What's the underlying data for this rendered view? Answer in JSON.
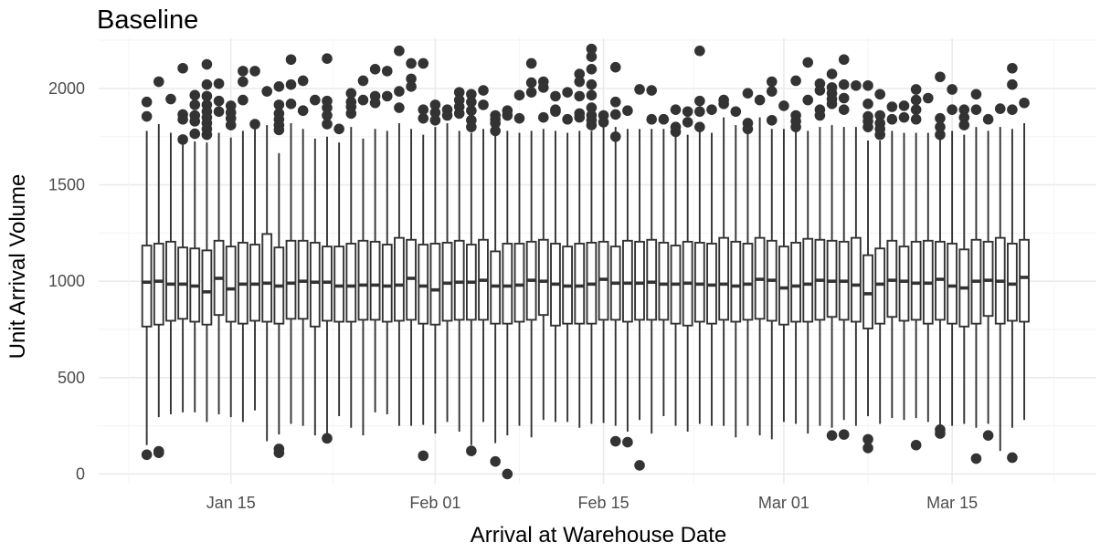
{
  "chart_data": {
    "type": "box",
    "title": "Baseline",
    "xlabel": "Arrival at Warehouse Date",
    "ylabel": "Unit Arrival Volume",
    "x_tick_labels": [
      "Jan 15",
      "Feb 01",
      "Feb 15",
      "Mar 01",
      "Mar 15"
    ],
    "x_tick_dates": [
      "2024-01-15",
      "2024-02-01",
      "2024-02-15",
      "2024-03-01",
      "2024-03-15"
    ],
    "x_range": [
      "2024-01-04",
      "2024-03-27"
    ],
    "y_ticks": [
      0,
      500,
      1000,
      1500,
      2000
    ],
    "ylim": [
      -50,
      2260
    ],
    "grid": true,
    "colors": {
      "box_outline": "#333333",
      "outlier": "#333333",
      "grid": "#ebebeb"
    },
    "boxes": [
      {
        "date": "2024-01-08",
        "min": 150,
        "q1": 765,
        "median": 995,
        "q3": 1185,
        "max": 1780,
        "outliers": [
          1930,
          1855,
          100
        ]
      },
      {
        "date": "2024-01-09",
        "min": 295,
        "q1": 775,
        "median": 1000,
        "q3": 1195,
        "max": 1815,
        "outliers": [
          2035,
          110,
          118
        ]
      },
      {
        "date": "2024-01-10",
        "min": 310,
        "q1": 795,
        "median": 985,
        "q3": 1205,
        "max": 1770,
        "outliers": [
          1945
        ]
      },
      {
        "date": "2024-01-11",
        "min": 320,
        "q1": 805,
        "median": 985,
        "q3": 1175,
        "max": 1710,
        "outliers": [
          2105,
          1865,
          1840,
          1735
        ]
      },
      {
        "date": "2024-01-12",
        "min": 320,
        "q1": 790,
        "median": 975,
        "q3": 1170,
        "max": 1725,
        "outliers": [
          1965,
          1915,
          1860,
          1830,
          1765
        ]
      },
      {
        "date": "2024-01-13",
        "min": 270,
        "q1": 775,
        "median": 945,
        "q3": 1160,
        "max": 1720,
        "outliers": [
          2125,
          2020,
          1960,
          1915,
          1880,
          1850,
          1820,
          1790,
          1760
        ]
      },
      {
        "date": "2024-01-14",
        "min": 310,
        "q1": 825,
        "median": 1015,
        "q3": 1210,
        "max": 1770,
        "outliers": [
          2025,
          1935,
          1880
        ]
      },
      {
        "date": "2024-01-15",
        "min": 295,
        "q1": 790,
        "median": 960,
        "q3": 1180,
        "max": 1745,
        "outliers": [
          1910,
          1875,
          1845,
          1810
        ]
      },
      {
        "date": "2024-01-16",
        "min": 270,
        "q1": 780,
        "median": 985,
        "q3": 1200,
        "max": 1780,
        "outliers": [
          2090,
          2035,
          1940
        ]
      },
      {
        "date": "2024-01-17",
        "min": 330,
        "q1": 795,
        "median": 985,
        "q3": 1190,
        "max": 1790,
        "outliers": [
          2090,
          1815
        ]
      },
      {
        "date": "2024-01-18",
        "min": 170,
        "q1": 790,
        "median": 990,
        "q3": 1245,
        "max": 1810,
        "outliers": [
          1985
        ]
      },
      {
        "date": "2024-01-19",
        "min": 205,
        "q1": 780,
        "median": 975,
        "q3": 1175,
        "max": 1665,
        "outliers": [
          2010,
          1915,
          1870,
          1840,
          1810,
          1785,
          130,
          110
        ]
      },
      {
        "date": "2024-01-20",
        "min": 260,
        "q1": 805,
        "median": 990,
        "q3": 1210,
        "max": 1820,
        "outliers": [
          2150,
          2020,
          1920
        ]
      },
      {
        "date": "2024-01-21",
        "min": 250,
        "q1": 805,
        "median": 1000,
        "q3": 1210,
        "max": 1790,
        "outliers": [
          2040,
          1885
        ]
      },
      {
        "date": "2024-01-22",
        "min": 200,
        "q1": 765,
        "median": 995,
        "q3": 1200,
        "max": 1740,
        "outliers": [
          1940
        ]
      },
      {
        "date": "2024-01-23",
        "min": 210,
        "q1": 795,
        "median": 995,
        "q3": 1180,
        "max": 1750,
        "outliers": [
          2155,
          1935,
          1900,
          1860,
          1815,
          185
        ]
      },
      {
        "date": "2024-01-24",
        "min": 300,
        "q1": 790,
        "median": 975,
        "q3": 1180,
        "max": 1720,
        "outliers": [
          1790
        ]
      },
      {
        "date": "2024-01-25",
        "min": 240,
        "q1": 790,
        "median": 975,
        "q3": 1195,
        "max": 1800,
        "outliers": [
          1975,
          1930,
          1905,
          1870
        ]
      },
      {
        "date": "2024-01-26",
        "min": 200,
        "q1": 800,
        "median": 980,
        "q3": 1210,
        "max": 1740,
        "outliers": [
          2040,
          1940
        ]
      },
      {
        "date": "2024-01-27",
        "min": 320,
        "q1": 800,
        "median": 980,
        "q3": 1205,
        "max": 1790,
        "outliers": [
          2100,
          1960,
          1925
        ]
      },
      {
        "date": "2024-01-28",
        "min": 310,
        "q1": 790,
        "median": 975,
        "q3": 1190,
        "max": 1780,
        "outliers": [
          2090,
          1960
        ]
      },
      {
        "date": "2024-01-29",
        "min": 250,
        "q1": 795,
        "median": 980,
        "q3": 1225,
        "max": 1820,
        "outliers": [
          2195,
          1985,
          1900
        ]
      },
      {
        "date": "2024-01-30",
        "min": 250,
        "q1": 800,
        "median": 1015,
        "q3": 1215,
        "max": 1790,
        "outliers": [
          2130,
          2050,
          2010
        ]
      },
      {
        "date": "2024-01-31",
        "min": 255,
        "q1": 780,
        "median": 975,
        "q3": 1190,
        "max": 1760,
        "outliers": [
          2130,
          1890,
          1845,
          95
        ]
      },
      {
        "date": "2024-02-01",
        "min": 210,
        "q1": 775,
        "median": 955,
        "q3": 1195,
        "max": 1800,
        "outliers": [
          1915,
          1875,
          1835
        ]
      },
      {
        "date": "2024-02-02",
        "min": 270,
        "q1": 795,
        "median": 990,
        "q3": 1200,
        "max": 1820,
        "outliers": [
          1890,
          1860
        ]
      },
      {
        "date": "2024-02-03",
        "min": 220,
        "q1": 800,
        "median": 995,
        "q3": 1210,
        "max": 1780,
        "outliers": [
          1980,
          1940,
          1905,
          1870
        ]
      },
      {
        "date": "2024-02-04",
        "min": 150,
        "q1": 800,
        "median": 995,
        "q3": 1190,
        "max": 1770,
        "outliers": [
          1970,
          1930,
          1885,
          1835,
          1800,
          120
        ]
      },
      {
        "date": "2024-02-05",
        "min": 270,
        "q1": 800,
        "median": 1005,
        "q3": 1215,
        "max": 1790,
        "outliers": [
          1990,
          1915
        ]
      },
      {
        "date": "2024-02-06",
        "min": 160,
        "q1": 780,
        "median": 975,
        "q3": 1155,
        "max": 1760,
        "outliers": [
          1860,
          1840,
          1820,
          1780,
          65
        ]
      },
      {
        "date": "2024-02-07",
        "min": 200,
        "q1": 780,
        "median": 975,
        "q3": 1195,
        "max": 1780,
        "outliers": [
          1885,
          1860,
          0
        ]
      },
      {
        "date": "2024-02-08",
        "min": 250,
        "q1": 790,
        "median": 980,
        "q3": 1195,
        "max": 1770,
        "outliers": [
          1965,
          1845
        ]
      },
      {
        "date": "2024-02-09",
        "min": 190,
        "q1": 800,
        "median": 1005,
        "q3": 1205,
        "max": 1780,
        "outliers": [
          2130,
          2030,
          1980
        ]
      },
      {
        "date": "2024-02-10",
        "min": 280,
        "q1": 825,
        "median": 1000,
        "q3": 1215,
        "max": 1790,
        "outliers": [
          2035,
          2005,
          1850
        ]
      },
      {
        "date": "2024-02-11",
        "min": 270,
        "q1": 770,
        "median": 985,
        "q3": 1195,
        "max": 1780,
        "outliers": [
          1960,
          1890,
          1880
        ]
      },
      {
        "date": "2024-02-12",
        "min": 270,
        "q1": 780,
        "median": 975,
        "q3": 1180,
        "max": 1770,
        "outliers": [
          1980,
          1840
        ]
      },
      {
        "date": "2024-02-13",
        "min": 240,
        "q1": 780,
        "median": 975,
        "q3": 1195,
        "max": 1780,
        "outliers": [
          2075,
          2035,
          1960,
          1870,
          1850
        ]
      },
      {
        "date": "2024-02-14",
        "min": 260,
        "q1": 780,
        "median": 985,
        "q3": 1200,
        "max": 1780,
        "outliers": [
          2205,
          2165,
          2100,
          2020,
          1965,
          1900,
          1860,
          1835,
          1810
        ]
      },
      {
        "date": "2024-02-15",
        "min": 265,
        "q1": 800,
        "median": 1010,
        "q3": 1205,
        "max": 1820,
        "outliers": [
          1860,
          1825
        ]
      },
      {
        "date": "2024-02-16",
        "min": 250,
        "q1": 800,
        "median": 990,
        "q3": 1180,
        "max": 1800,
        "outliers": [
          2110,
          1930,
          1865,
          1750,
          170
        ]
      },
      {
        "date": "2024-02-17",
        "min": 220,
        "q1": 790,
        "median": 990,
        "q3": 1210,
        "max": 1790,
        "outliers": [
          1885,
          165
        ]
      },
      {
        "date": "2024-02-18",
        "min": 280,
        "q1": 800,
        "median": 990,
        "q3": 1205,
        "max": 1790,
        "outliers": [
          1995,
          45
        ]
      },
      {
        "date": "2024-02-19",
        "min": 210,
        "q1": 800,
        "median": 995,
        "q3": 1215,
        "max": 1790,
        "outliers": [
          1990,
          1840
        ]
      },
      {
        "date": "2024-02-20",
        "min": 300,
        "q1": 800,
        "median": 985,
        "q3": 1200,
        "max": 1790,
        "outliers": [
          1840
        ]
      },
      {
        "date": "2024-02-21",
        "min": 250,
        "q1": 780,
        "median": 985,
        "q3": 1185,
        "max": 1790,
        "outliers": [
          1890,
          1800,
          1775
        ]
      },
      {
        "date": "2024-02-22",
        "min": 220,
        "q1": 770,
        "median": 990,
        "q3": 1205,
        "max": 1760,
        "outliers": [
          1880,
          1825
        ]
      },
      {
        "date": "2024-02-23",
        "min": 260,
        "q1": 790,
        "median": 985,
        "q3": 1200,
        "max": 1790,
        "outliers": [
          2195,
          1935,
          1880,
          1800
        ]
      },
      {
        "date": "2024-02-24",
        "min": 250,
        "q1": 780,
        "median": 980,
        "q3": 1195,
        "max": 1770,
        "outliers": [
          1890
        ]
      },
      {
        "date": "2024-02-25",
        "min": 250,
        "q1": 800,
        "median": 985,
        "q3": 1225,
        "max": 1850,
        "outliers": [
          1940,
          1920
        ]
      },
      {
        "date": "2024-02-26",
        "min": 190,
        "q1": 790,
        "median": 975,
        "q3": 1205,
        "max": 1810,
        "outliers": [
          1880
        ]
      },
      {
        "date": "2024-02-27",
        "min": 250,
        "q1": 800,
        "median": 985,
        "q3": 1195,
        "max": 1780,
        "outliers": [
          1975,
          1820,
          1790
        ]
      },
      {
        "date": "2024-02-28",
        "min": 200,
        "q1": 805,
        "median": 1010,
        "q3": 1225,
        "max": 1850,
        "outliers": [
          1940
        ]
      },
      {
        "date": "2024-02-29",
        "min": 180,
        "q1": 795,
        "median": 1005,
        "q3": 1210,
        "max": 1790,
        "outliers": [
          2035,
          1985,
          1835
        ]
      },
      {
        "date": "2024-03-01",
        "min": 270,
        "q1": 775,
        "median": 965,
        "q3": 1180,
        "max": 1790,
        "outliers": [
          1910
        ]
      },
      {
        "date": "2024-03-02",
        "min": 260,
        "q1": 790,
        "median": 975,
        "q3": 1200,
        "max": 1790,
        "outliers": [
          2040,
          1860,
          1830,
          1800
        ]
      },
      {
        "date": "2024-03-03",
        "min": 210,
        "q1": 790,
        "median": 985,
        "q3": 1220,
        "max": 1780,
        "outliers": [
          2135,
          1940
        ]
      },
      {
        "date": "2024-03-04",
        "min": 250,
        "q1": 800,
        "median": 1005,
        "q3": 1215,
        "max": 1800,
        "outliers": [
          2025,
          1990,
          1890,
          1860
        ]
      },
      {
        "date": "2024-03-05",
        "min": 240,
        "q1": 815,
        "median": 1000,
        "q3": 1210,
        "max": 1810,
        "outliers": [
          2075,
          2005,
          1975,
          1945,
          1920,
          200
        ]
      },
      {
        "date": "2024-03-06",
        "min": 280,
        "q1": 800,
        "median": 1000,
        "q3": 1205,
        "max": 1800,
        "outliers": [
          2150,
          2020,
          1950,
          1890,
          205
        ]
      },
      {
        "date": "2024-03-07",
        "min": 250,
        "q1": 790,
        "median": 980,
        "q3": 1225,
        "max": 1800,
        "outliers": [
          2015
        ]
      },
      {
        "date": "2024-03-08",
        "min": 300,
        "q1": 755,
        "median": 935,
        "q3": 1135,
        "max": 1730,
        "outliers": [
          2015,
          1920,
          1855,
          1830,
          1800,
          180,
          135
        ]
      },
      {
        "date": "2024-03-09",
        "min": 260,
        "q1": 780,
        "median": 985,
        "q3": 1170,
        "max": 1730,
        "outliers": [
          1970,
          1860,
          1820,
          1790,
          1760
        ]
      },
      {
        "date": "2024-03-10",
        "min": 290,
        "q1": 815,
        "median": 1005,
        "q3": 1210,
        "max": 1780,
        "outliers": [
          1905,
          1840
        ]
      },
      {
        "date": "2024-03-11",
        "min": 280,
        "q1": 795,
        "median": 1000,
        "q3": 1180,
        "max": 1770,
        "outliers": [
          1910,
          1850
        ]
      },
      {
        "date": "2024-03-12",
        "min": 290,
        "q1": 800,
        "median": 990,
        "q3": 1205,
        "max": 1770,
        "outliers": [
          1995,
          1940,
          1890,
          1840,
          150
        ]
      },
      {
        "date": "2024-03-13",
        "min": 270,
        "q1": 780,
        "median": 990,
        "q3": 1210,
        "max": 1770,
        "outliers": [
          1950
        ]
      },
      {
        "date": "2024-03-14",
        "min": 250,
        "q1": 800,
        "median": 1010,
        "q3": 1205,
        "max": 1790,
        "outliers": [
          2060,
          1845,
          1800,
          1760,
          230,
          210
        ]
      },
      {
        "date": "2024-03-15",
        "min": 250,
        "q1": 780,
        "median": 975,
        "q3": 1195,
        "max": 1780,
        "outliers": [
          1995,
          1890
        ]
      },
      {
        "date": "2024-03-16",
        "min": 260,
        "q1": 765,
        "median": 965,
        "q3": 1165,
        "max": 1760,
        "outliers": [
          1890,
          1850,
          1810
        ]
      },
      {
        "date": "2024-03-17",
        "min": 240,
        "q1": 780,
        "median": 1000,
        "q3": 1215,
        "max": 1800,
        "outliers": [
          1970,
          1890,
          80
        ]
      },
      {
        "date": "2024-03-18",
        "min": 260,
        "q1": 820,
        "median": 1005,
        "q3": 1205,
        "max": 1780,
        "outliers": [
          1840,
          200
        ]
      },
      {
        "date": "2024-03-19",
        "min": 120,
        "q1": 780,
        "median": 1000,
        "q3": 1225,
        "max": 1800,
        "outliers": [
          1895
        ]
      },
      {
        "date": "2024-03-20",
        "min": 240,
        "q1": 795,
        "median": 985,
        "q3": 1195,
        "max": 1790,
        "outliers": [
          2105,
          2020,
          1890,
          85
        ]
      },
      {
        "date": "2024-03-21",
        "min": 280,
        "q1": 790,
        "median": 1020,
        "q3": 1215,
        "max": 1820,
        "outliers": [
          1925
        ]
      }
    ]
  }
}
